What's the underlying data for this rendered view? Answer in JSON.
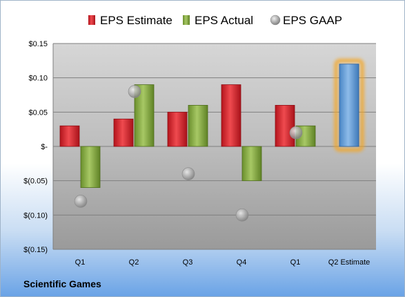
{
  "company_label": "Scientific Games",
  "chart_data": {
    "type": "bar",
    "categories": [
      "Q1",
      "Q2",
      "Q3",
      "Q4",
      "Q1",
      "Q2 Estimate"
    ],
    "ylim": [
      -0.15,
      0.15
    ],
    "yticks": [
      0.15,
      0.1,
      0.05,
      0,
      -0.05,
      -0.1,
      -0.15
    ],
    "ytick_labels": [
      "$0.15",
      "$0.10",
      "$0.05",
      "$-",
      "$(0.05)",
      "$(0.10)",
      "$(0.15)"
    ],
    "legend_position": "top",
    "grid": true,
    "series": [
      {
        "name": "EPS Estimate",
        "type": "bar",
        "color": "#d0202a",
        "values": [
          0.03,
          0.04,
          0.05,
          0.09,
          0.06,
          null
        ]
      },
      {
        "name": "EPS Actual",
        "type": "bar",
        "color": "#7ea43a",
        "values": [
          -0.06,
          0.09,
          0.06,
          -0.05,
          0.03,
          null
        ]
      },
      {
        "name": "EPS GAAP",
        "type": "marker",
        "color": "#a9a9a9",
        "values": [
          -0.08,
          0.08,
          -0.04,
          -0.1,
          0.02,
          null
        ]
      }
    ],
    "forecast": {
      "category_index": 5,
      "value": 0.12,
      "color": "#5b9bd5",
      "highlight_color": "#f5a623"
    }
  }
}
